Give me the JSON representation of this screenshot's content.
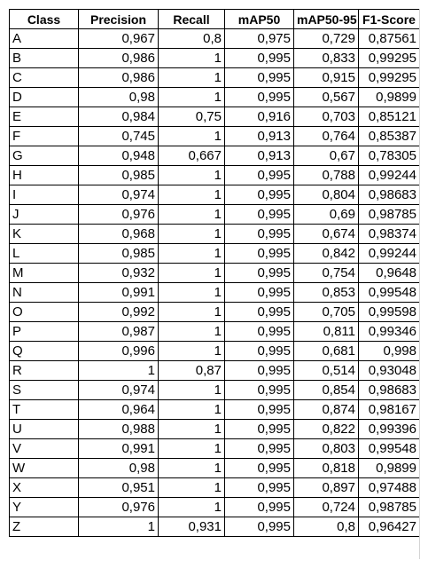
{
  "table": {
    "headers": [
      "Class",
      "Precision",
      "Recall",
      "mAP50",
      "mAP50-95",
      "F1-Score"
    ],
    "rows": [
      [
        "A",
        "0,967",
        "0,8",
        "0,975",
        "0,729",
        "0,87561"
      ],
      [
        "B",
        "0,986",
        "1",
        "0,995",
        "0,833",
        "0,99295"
      ],
      [
        "C",
        "0,986",
        "1",
        "0,995",
        "0,915",
        "0,99295"
      ],
      [
        "D",
        "0,98",
        "1",
        "0,995",
        "0,567",
        "0,9899"
      ],
      [
        "E",
        "0,984",
        "0,75",
        "0,916",
        "0,703",
        "0,85121"
      ],
      [
        "F",
        "0,745",
        "1",
        "0,913",
        "0,764",
        "0,85387"
      ],
      [
        "G",
        "0,948",
        "0,667",
        "0,913",
        "0,67",
        "0,78305"
      ],
      [
        "H",
        "0,985",
        "1",
        "0,995",
        "0,788",
        "0,99244"
      ],
      [
        "I",
        "0,974",
        "1",
        "0,995",
        "0,804",
        "0,98683"
      ],
      [
        "J",
        "0,976",
        "1",
        "0,995",
        "0,69",
        "0,98785"
      ],
      [
        "K",
        "0,968",
        "1",
        "0,995",
        "0,674",
        "0,98374"
      ],
      [
        "L",
        "0,985",
        "1",
        "0,995",
        "0,842",
        "0,99244"
      ],
      [
        "M",
        "0,932",
        "1",
        "0,995",
        "0,754",
        "0,9648"
      ],
      [
        "N",
        "0,991",
        "1",
        "0,995",
        "0,853",
        "0,99548"
      ],
      [
        "O",
        "0,992",
        "1",
        "0,995",
        "0,705",
        "0,99598"
      ],
      [
        "P",
        "0,987",
        "1",
        "0,995",
        "0,811",
        "0,99346"
      ],
      [
        "Q",
        "0,996",
        "1",
        "0,995",
        "0,681",
        "0,998"
      ],
      [
        "R",
        "1",
        "0,87",
        "0,995",
        "0,514",
        "0,93048"
      ],
      [
        "S",
        "0,974",
        "1",
        "0,995",
        "0,854",
        "0,98683"
      ],
      [
        "T",
        "0,964",
        "1",
        "0,995",
        "0,874",
        "0,98167"
      ],
      [
        "U",
        "0,988",
        "1",
        "0,995",
        "0,822",
        "0,99396"
      ],
      [
        "V",
        "0,991",
        "1",
        "0,995",
        "0,803",
        "0,99548"
      ],
      [
        "W",
        "0,98",
        "1",
        "0,995",
        "0,818",
        "0,9899"
      ],
      [
        "X",
        "0,951",
        "1",
        "0,995",
        "0,897",
        "0,97488"
      ],
      [
        "Y",
        "0,976",
        "1",
        "0,995",
        "0,724",
        "0,98785"
      ],
      [
        "Z",
        "1",
        "0,931",
        "0,995",
        "0,8",
        "0,96427"
      ]
    ]
  }
}
